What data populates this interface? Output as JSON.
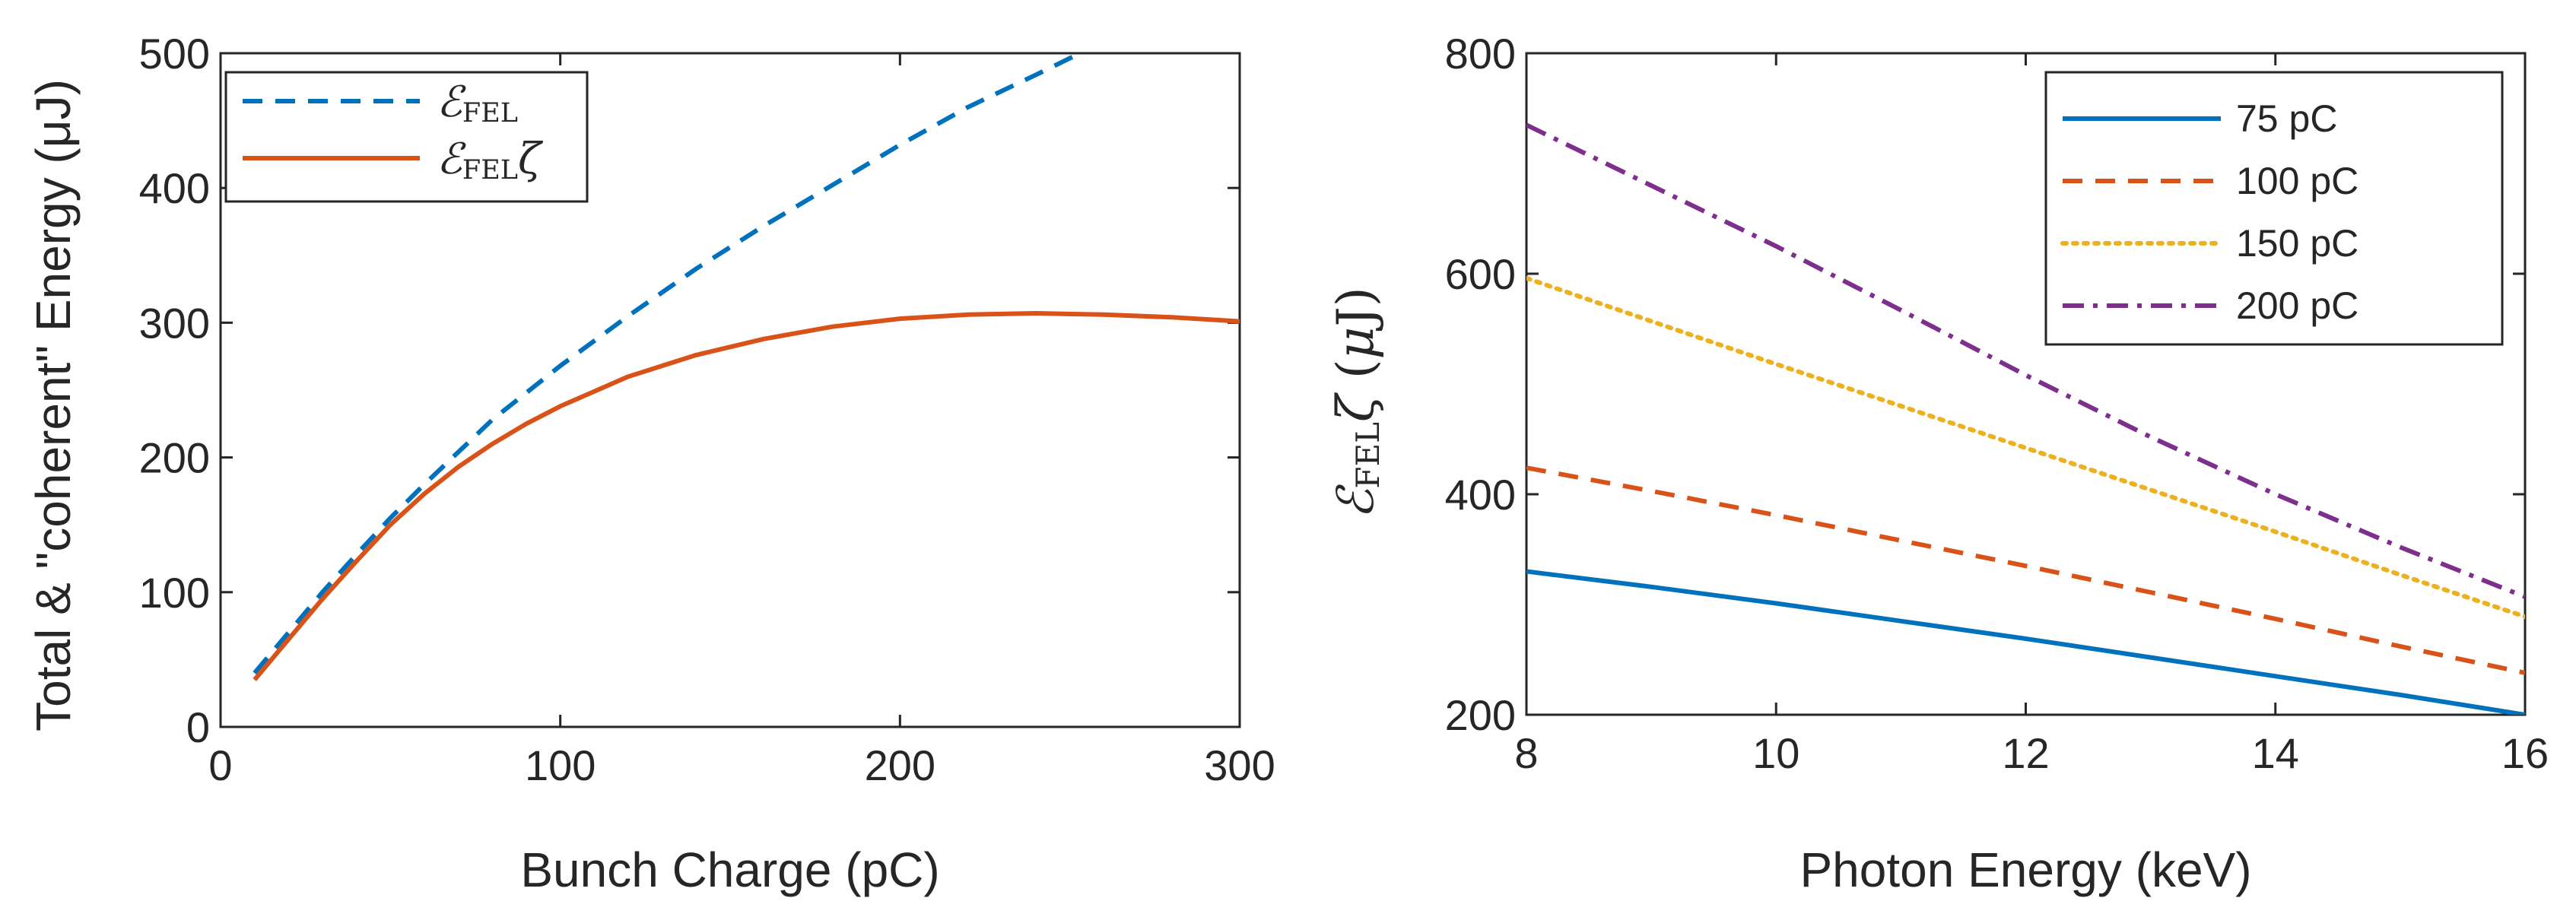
{
  "chart_data": [
    {
      "type": "line",
      "xlabel": "Bunch Charge (pC)",
      "ylabel": "Total & \"coherent\" Energy (μJ)",
      "xlim": [
        0,
        300
      ],
      "ylim": [
        0,
        500
      ],
      "xticks": [
        0,
        100,
        200,
        300
      ],
      "yticks": [
        0,
        100,
        200,
        300,
        400,
        500
      ],
      "legend_position": "top-left",
      "series": [
        {
          "name": "ℰFEL",
          "color": "#0072BD",
          "style": "dashed",
          "x": [
            10,
            20,
            30,
            40,
            50,
            60,
            80,
            100,
            120,
            140,
            160,
            180,
            200,
            220,
            240,
            253
          ],
          "y": [
            40,
            70,
            100,
            128,
            155,
            180,
            228,
            268,
            305,
            340,
            372,
            402,
            432,
            460,
            484,
            500
          ]
        },
        {
          "name": "ℰFELζ",
          "color": "#D95319",
          "style": "solid",
          "x": [
            10,
            20,
            30,
            40,
            50,
            60,
            70,
            80,
            90,
            100,
            120,
            140,
            160,
            180,
            200,
            220,
            240,
            260,
            280,
            300
          ],
          "y": [
            35,
            65,
            95,
            123,
            150,
            173,
            193,
            210,
            225,
            238,
            260,
            276,
            288,
            297,
            303,
            306,
            307,
            306,
            304,
            301
          ]
        }
      ]
    },
    {
      "type": "line",
      "xlabel": "Photon Energy (keV)",
      "ylabel": "ℰFELζ (μJ)",
      "xlim": [
        8,
        16
      ],
      "ylim": [
        200,
        800
      ],
      "xticks": [
        8,
        10,
        12,
        14,
        16
      ],
      "yticks": [
        200,
        400,
        600,
        800
      ],
      "legend_position": "top-right",
      "series": [
        {
          "name": "75 pC",
          "color": "#0072BD",
          "style": "solid",
          "x": [
            8,
            9,
            10,
            11,
            12,
            13,
            14,
            15,
            16
          ],
          "y": [
            330,
            316,
            301,
            285,
            269,
            252,
            235,
            218,
            200
          ]
        },
        {
          "name": "100 pC",
          "color": "#D95319",
          "style": "dashed",
          "x": [
            8,
            9,
            10,
            11,
            12,
            13,
            14,
            15,
            16
          ],
          "y": [
            424,
            403,
            381,
            358,
            335,
            311,
            287,
            262,
            238
          ]
        },
        {
          "name": "150 pC",
          "color": "#EDB120",
          "style": "dotted",
          "x": [
            8,
            9,
            10,
            11,
            12,
            13,
            14,
            15,
            16
          ],
          "y": [
            596,
            557,
            518,
            480,
            442,
            404,
            366,
            327,
            289
          ]
        },
        {
          "name": "200 pC",
          "color": "#7E2F8E",
          "style": "dashdot",
          "x": [
            8,
            9,
            10,
            11,
            12,
            13,
            14,
            15,
            16
          ],
          "y": [
            735,
            680,
            625,
            567,
            508,
            452,
            400,
            352,
            307
          ]
        }
      ]
    }
  ]
}
